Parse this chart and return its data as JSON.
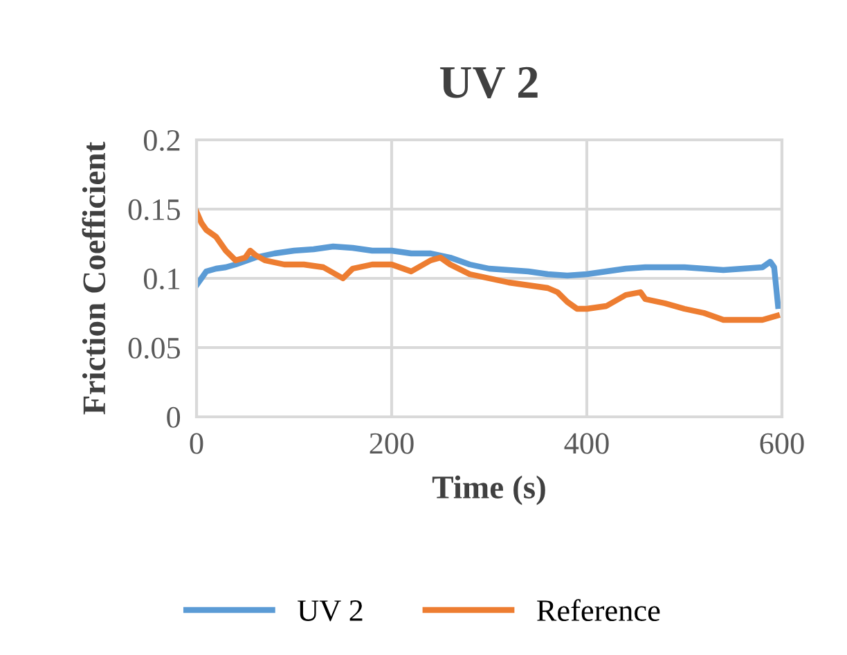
{
  "chart_data": {
    "type": "line",
    "title": "UV 2",
    "xlabel": "Time (s)",
    "ylabel": "Friction Coefficient",
    "xlim": [
      0,
      600
    ],
    "xticks": [
      0,
      200,
      400,
      600
    ],
    "ylim": [
      0,
      0.2
    ],
    "yticks": [
      0,
      0.05,
      0.1,
      0.15,
      0.2
    ],
    "grid": true,
    "legend": "bottom",
    "marker": "none",
    "line_style": "solid",
    "series": [
      {
        "name": "UV 2",
        "color": "#5b9bd5",
        "x": [
          0,
          5,
          10,
          20,
          30,
          40,
          60,
          80,
          100,
          120,
          140,
          160,
          180,
          200,
          220,
          240,
          260,
          280,
          300,
          320,
          340,
          360,
          380,
          400,
          420,
          440,
          460,
          480,
          500,
          520,
          540,
          560,
          580,
          588,
          592,
          596
        ],
        "values": [
          0.095,
          0.1,
          0.105,
          0.107,
          0.108,
          0.11,
          0.115,
          0.118,
          0.12,
          0.121,
          0.123,
          0.122,
          0.12,
          0.12,
          0.118,
          0.118,
          0.115,
          0.11,
          0.107,
          0.106,
          0.105,
          0.103,
          0.102,
          0.103,
          0.105,
          0.107,
          0.108,
          0.108,
          0.108,
          0.107,
          0.106,
          0.107,
          0.108,
          0.112,
          0.108,
          0.08
        ]
      },
      {
        "name": "Reference",
        "color": "#ed7d31",
        "x": [
          0,
          5,
          10,
          20,
          30,
          40,
          50,
          55,
          60,
          70,
          90,
          110,
          130,
          150,
          160,
          180,
          200,
          220,
          240,
          250,
          260,
          280,
          300,
          320,
          340,
          360,
          370,
          380,
          390,
          400,
          420,
          440,
          455,
          460,
          480,
          500,
          520,
          540,
          560,
          580,
          595
        ],
        "values": [
          0.148,
          0.14,
          0.135,
          0.13,
          0.12,
          0.113,
          0.115,
          0.12,
          0.117,
          0.113,
          0.11,
          0.11,
          0.108,
          0.1,
          0.107,
          0.11,
          0.11,
          0.105,
          0.113,
          0.115,
          0.11,
          0.103,
          0.1,
          0.097,
          0.095,
          0.093,
          0.09,
          0.083,
          0.078,
          0.078,
          0.08,
          0.088,
          0.09,
          0.085,
          0.082,
          0.078,
          0.075,
          0.07,
          0.07,
          0.07,
          0.073
        ]
      }
    ]
  }
}
